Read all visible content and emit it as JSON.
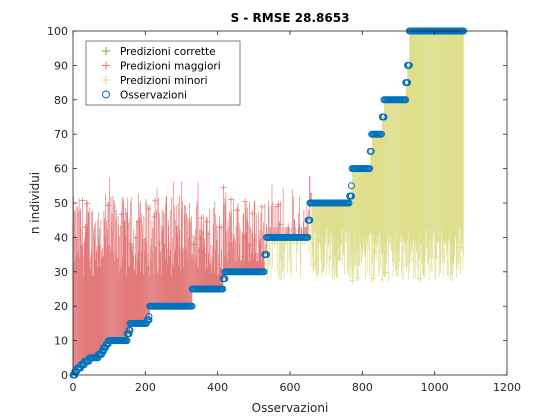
{
  "chart_data": {
    "type": "scatter",
    "title": "S - RMSE 28.8653",
    "xlabel": "Osservazioni",
    "ylabel": "n individui",
    "xlim": [
      0,
      1200
    ],
    "ylim": [
      0,
      100
    ],
    "xticks": [
      0,
      200,
      400,
      600,
      800,
      1000,
      1200
    ],
    "yticks": [
      0,
      10,
      20,
      30,
      40,
      50,
      60,
      70,
      80,
      90,
      100
    ],
    "grid": false,
    "legend_position": "top-left",
    "colors": {
      "correct": "#77AC30",
      "over": "#E37A7A",
      "under": "#DEDE8C",
      "obs": "#0072BD"
    },
    "series": [
      {
        "name": "Predizioni corrette",
        "marker": "plus",
        "color_key": "correct"
      },
      {
        "name": "Predizioni maggiori",
        "marker": "plus",
        "color_key": "over"
      },
      {
        "name": "Predizioni minori",
        "marker": "plus",
        "color_key": "under"
      },
      {
        "name": "Osservazioni",
        "marker": "circle",
        "color_key": "obs"
      }
    ],
    "observation_steps": [
      {
        "x_start": 0,
        "x_end": 5,
        "y": 0
      },
      {
        "x_start": 5,
        "x_end": 12,
        "y": 1
      },
      {
        "x_start": 12,
        "x_end": 22,
        "y": 2
      },
      {
        "x_start": 22,
        "x_end": 32,
        "y": 3
      },
      {
        "x_start": 32,
        "x_end": 45,
        "y": 4
      },
      {
        "x_start": 45,
        "x_end": 70,
        "y": 5
      },
      {
        "x_start": 70,
        "x_end": 80,
        "y": 6
      },
      {
        "x_start": 80,
        "x_end": 85,
        "y": 7
      },
      {
        "x_start": 85,
        "x_end": 92,
        "y": 8
      },
      {
        "x_start": 92,
        "x_end": 98,
        "y": 9
      },
      {
        "x_start": 98,
        "x_end": 150,
        "y": 10
      },
      {
        "x_start": 150,
        "x_end": 155,
        "y": 12
      },
      {
        "x_start": 155,
        "x_end": 158,
        "y": 13
      },
      {
        "x_start": 158,
        "x_end": 205,
        "y": 15
      },
      {
        "x_start": 205,
        "x_end": 210,
        "y": 16
      },
      {
        "x_start": 210,
        "x_end": 212,
        "y": 17
      },
      {
        "x_start": 212,
        "x_end": 330,
        "y": 20
      },
      {
        "x_start": 330,
        "x_end": 415,
        "y": 25
      },
      {
        "x_start": 415,
        "x_end": 420,
        "y": 28
      },
      {
        "x_start": 420,
        "x_end": 530,
        "y": 30
      },
      {
        "x_start": 530,
        "x_end": 535,
        "y": 35
      },
      {
        "x_start": 535,
        "x_end": 650,
        "y": 40
      },
      {
        "x_start": 650,
        "x_end": 655,
        "y": 45
      },
      {
        "x_start": 655,
        "x_end": 765,
        "y": 50
      },
      {
        "x_start": 765,
        "x_end": 770,
        "y": 52
      },
      {
        "x_start": 770,
        "x_end": 772,
        "y": 55
      },
      {
        "x_start": 772,
        "x_end": 822,
        "y": 60
      },
      {
        "x_start": 822,
        "x_end": 826,
        "y": 65
      },
      {
        "x_start": 826,
        "x_end": 855,
        "y": 70
      },
      {
        "x_start": 855,
        "x_end": 860,
        "y": 75
      },
      {
        "x_start": 860,
        "x_end": 920,
        "y": 80
      },
      {
        "x_start": 920,
        "x_end": 925,
        "y": 85
      },
      {
        "x_start": 925,
        "x_end": 930,
        "y": 90
      },
      {
        "x_start": 930,
        "x_end": 1080,
        "y": 100
      }
    ],
    "prediction_envelope": {
      "over_region": {
        "x_range": [
          0,
          660
        ],
        "y_max_range": [
          25,
          58
        ],
        "typical_max": 52
      },
      "under_region": {
        "x_range": [
          530,
          1080
        ],
        "y_min_range": [
          28,
          45
        ],
        "typical_min": 35
      }
    }
  }
}
